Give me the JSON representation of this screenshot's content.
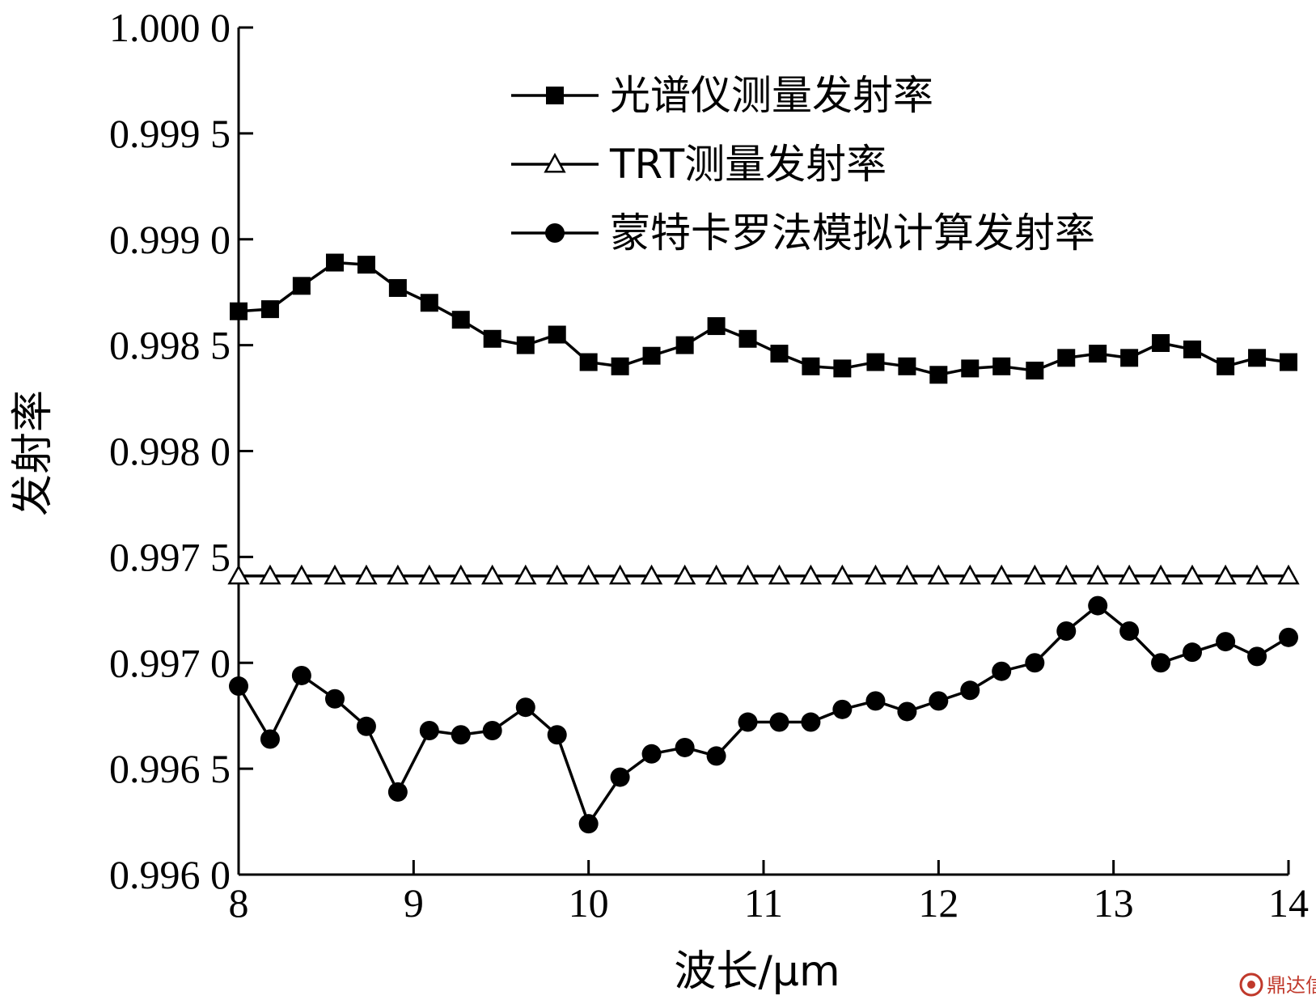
{
  "chart_data": {
    "type": "line",
    "xlabel": "波长/μm",
    "ylabel": "发射率",
    "xlim": [
      8,
      14
    ],
    "ylim": [
      0.996,
      1.0
    ],
    "x_ticks": [
      "8",
      "9",
      "10",
      "11",
      "12",
      "13",
      "14"
    ],
    "y_ticks": [
      "0.996 0",
      "0.996 5",
      "0.997 0",
      "0.997 5",
      "0.998 0",
      "0.998 5",
      "0.999 0",
      "0.999 5",
      "1.000 0"
    ],
    "legend_position": "top-right",
    "series": [
      {
        "name": "光谱仪测量发射率",
        "marker": "square",
        "x": [
          8.0,
          8.18,
          8.36,
          8.55,
          8.73,
          8.91,
          9.09,
          9.27,
          9.45,
          9.64,
          9.82,
          10.0,
          10.18,
          10.36,
          10.55,
          10.73,
          10.91,
          11.09,
          11.27,
          11.45,
          11.64,
          11.82,
          12.0,
          12.18,
          12.36,
          12.55,
          12.73,
          12.91,
          13.09,
          13.27,
          13.45,
          13.64,
          13.82,
          14.0
        ],
        "y": [
          0.99866,
          0.99867,
          0.99878,
          0.99889,
          0.99888,
          0.99877,
          0.9987,
          0.99862,
          0.99853,
          0.9985,
          0.99855,
          0.99842,
          0.9984,
          0.99845,
          0.9985,
          0.99859,
          0.99853,
          0.99846,
          0.9984,
          0.99839,
          0.99842,
          0.9984,
          0.99836,
          0.99839,
          0.9984,
          0.99838,
          0.99844,
          0.99846,
          0.99844,
          0.99851,
          0.99848,
          0.9984,
          0.99844,
          0.99842
        ]
      },
      {
        "name": "TRT测量发射率",
        "marker": "triangle",
        "x": [
          8.0,
          8.18,
          8.36,
          8.55,
          8.73,
          8.91,
          9.09,
          9.27,
          9.45,
          9.64,
          9.82,
          10.0,
          10.18,
          10.36,
          10.55,
          10.73,
          10.91,
          11.09,
          11.27,
          11.45,
          11.64,
          11.82,
          12.0,
          12.18,
          12.36,
          12.55,
          12.73,
          12.91,
          13.09,
          13.27,
          13.45,
          13.64,
          13.82,
          14.0
        ],
        "y": [
          0.99741,
          0.99741,
          0.99741,
          0.99741,
          0.99741,
          0.99741,
          0.99741,
          0.99741,
          0.99741,
          0.99741,
          0.99741,
          0.99741,
          0.99741,
          0.99741,
          0.99741,
          0.99741,
          0.99741,
          0.99741,
          0.99741,
          0.99741,
          0.99741,
          0.99741,
          0.99741,
          0.99741,
          0.99741,
          0.99741,
          0.99741,
          0.99741,
          0.99741,
          0.99741,
          0.99741,
          0.99741,
          0.99741,
          0.99741
        ]
      },
      {
        "name": "蒙特卡罗法模拟计算发射率",
        "marker": "circle",
        "x": [
          8.0,
          8.18,
          8.36,
          8.55,
          8.73,
          8.91,
          9.09,
          9.27,
          9.45,
          9.64,
          9.82,
          10.0,
          10.18,
          10.36,
          10.55,
          10.73,
          10.91,
          11.09,
          11.27,
          11.45,
          11.64,
          11.82,
          12.0,
          12.18,
          12.36,
          12.55,
          12.73,
          12.91,
          13.09,
          13.27,
          13.45,
          13.64,
          13.82,
          14.0
        ],
        "y": [
          0.99689,
          0.99664,
          0.99694,
          0.99683,
          0.9967,
          0.99639,
          0.99668,
          0.99666,
          0.99668,
          0.99679,
          0.99666,
          0.99624,
          0.99646,
          0.99657,
          0.9966,
          0.99656,
          0.99672,
          0.99672,
          0.99672,
          0.99678,
          0.99682,
          0.99677,
          0.99682,
          0.99687,
          0.99696,
          0.997,
          0.99715,
          0.99727,
          0.99715,
          0.997,
          0.99705,
          0.9971,
          0.99703,
          0.99712
        ]
      }
    ]
  },
  "colors": {
    "line": "#000000",
    "background": "#ffffff",
    "watermark": "#c0392b"
  },
  "watermark": {
    "text": "鼎达信",
    "icon": "seal-icon"
  }
}
